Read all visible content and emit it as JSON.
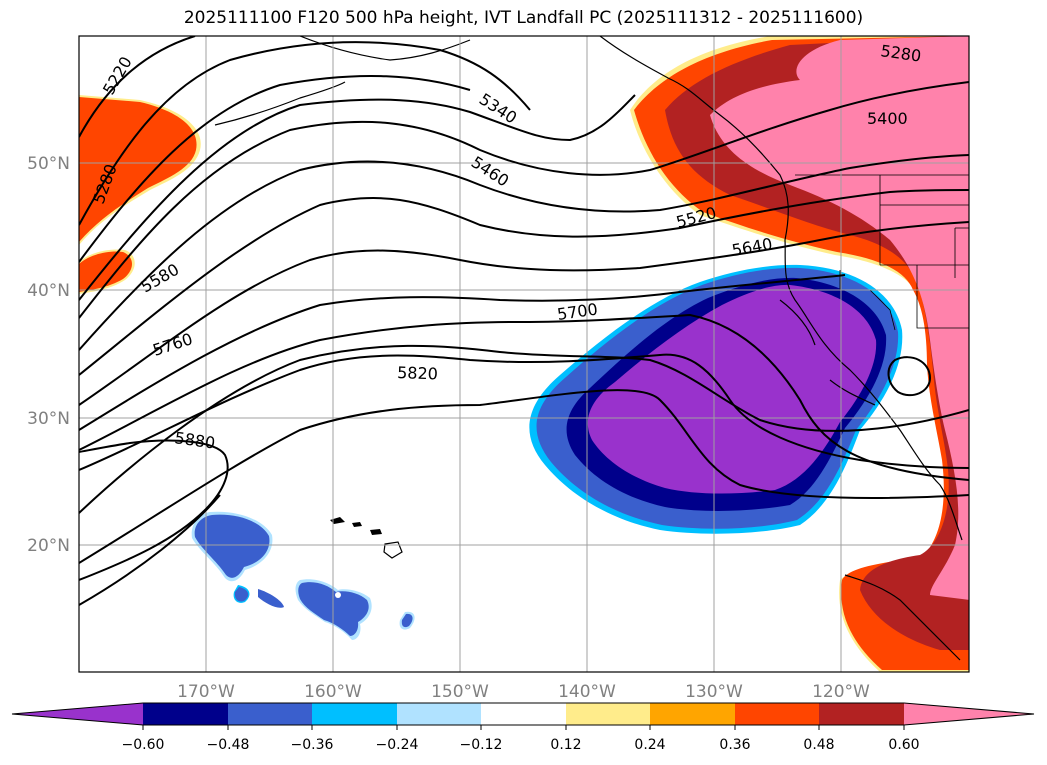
{
  "title": "2025111100 F120 500 hPa height, IVT Landfall PC (2025111312 - 2025111600)",
  "axes": {
    "lon_labels": [
      "170°W",
      "160°W",
      "150°W",
      "140°W",
      "130°W",
      "120°W"
    ],
    "lat_labels": [
      "50°N",
      "40°N",
      "30°N",
      "20°N"
    ],
    "lon_range": [
      -180,
      -110
    ],
    "lat_range": [
      10,
      59
    ],
    "grid": true
  },
  "height_contours": {
    "interval": 60,
    "labels": [
      "5220",
      "5280",
      "5340",
      "5460",
      "5520",
      "5580",
      "5640",
      "5700",
      "5760",
      "5820",
      "5880",
      "5280",
      "5400"
    ]
  },
  "colorbar": {
    "ticks": [
      "−0.60",
      "−0.48",
      "−0.36",
      "−0.24",
      "−0.12",
      "0.12",
      "0.24",
      "0.36",
      "0.48",
      "0.60"
    ],
    "colors": [
      "#9932cc",
      "#00008b",
      "#3a5fcd",
      "#00bfff",
      "#b0e2ff",
      "#ffffff",
      "#ffec8b",
      "#ffa500",
      "#ff4500",
      "#b22222",
      "#ff82ab"
    ],
    "extend": "both"
  }
}
